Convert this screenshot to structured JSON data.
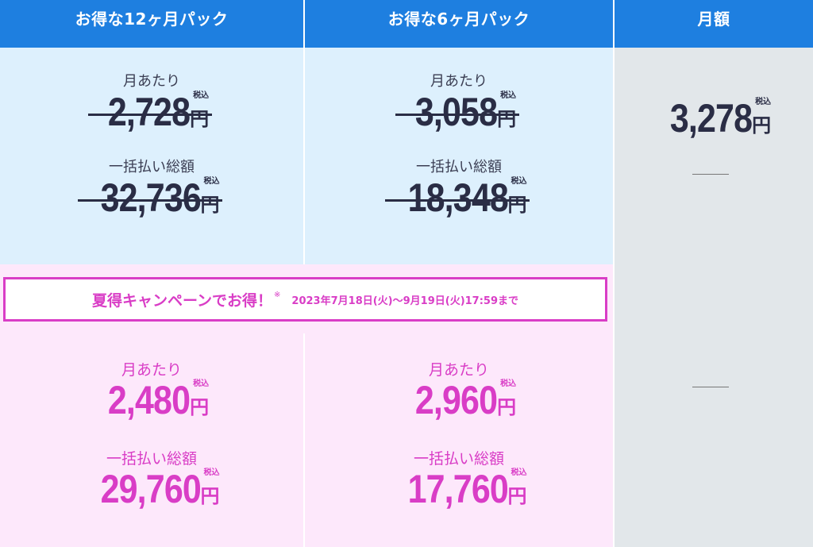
{
  "header": {
    "col1": "お得な12ヶ月パック",
    "col2": "お得な6ヶ月パック",
    "col3": "月額"
  },
  "tax_label": "税込",
  "yen": "円",
  "regular": {
    "pack12": {
      "monthly_label": "月あたり",
      "monthly": "2,728",
      "total_label": "一括払い総額",
      "total": "32,736"
    },
    "pack6": {
      "monthly_label": "月あたり",
      "monthly": "3,058",
      "total_label": "一括払い総額",
      "total": "18,348"
    },
    "monthly_plan": {
      "price": "3,278",
      "dash1": "—",
      "dash2": "—"
    }
  },
  "campaign": {
    "title": "夏得キャンペーンでお得！",
    "note_mark": "※",
    "period": "2023年7月18日(火)〜9月19日(火)17:59まで"
  },
  "sale": {
    "pack12": {
      "monthly_label": "月あたり",
      "monthly": "2,480",
      "total_label": "一括払い総額",
      "total": "29,760"
    },
    "pack6": {
      "monthly_label": "月あたり",
      "monthly": "2,960",
      "total_label": "一括払い総額",
      "total": "17,760"
    }
  },
  "colors": {
    "header_blue": "#1e7fe0",
    "light_blue": "#ddf0fd",
    "pink": "#d93dc6",
    "light_pink": "#fde8fb",
    "grey": "#e2e7ea"
  }
}
